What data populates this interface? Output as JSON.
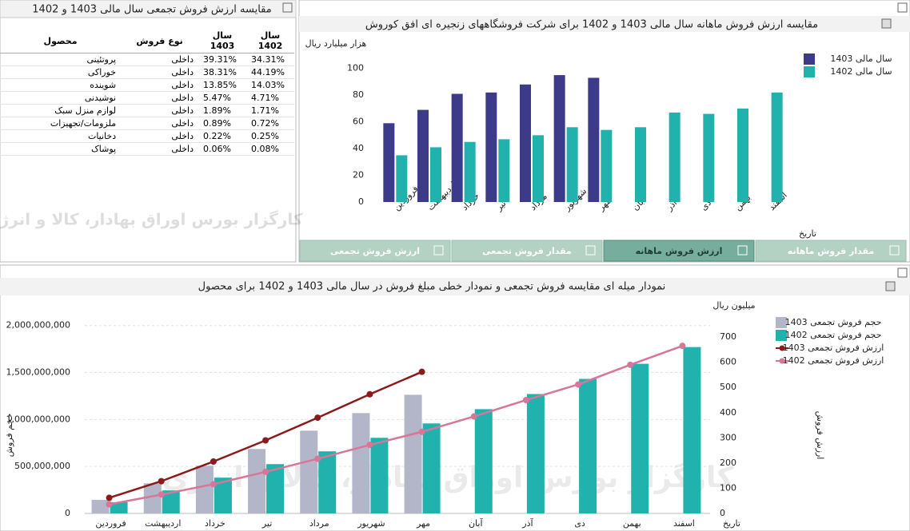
{
  "table_panel": {
    "title": "مقایسه ارزش فروش تجمعی سال مالی 1403 و 1402",
    "columns": [
      "محصول",
      "نوع فروش",
      "سال 1403",
      "سال 1402"
    ],
    "rows": [
      [
        "پروتئینی",
        "داخلی",
        "39.31%",
        "34.31%"
      ],
      [
        "خوراکی",
        "داخلی",
        "38.31%",
        "44.19%"
      ],
      [
        "شوینده",
        "داخلی",
        "13.85%",
        "14.03%"
      ],
      [
        "نوشیدنی",
        "داخلی",
        "5.47%",
        "4.71%"
      ],
      [
        "لوازم منزل سبک",
        "داخلی",
        "1.89%",
        "1.71%"
      ],
      [
        "ملزومات/تجهیزات",
        "داخلی",
        "0.89%",
        "0.72%"
      ],
      [
        "دخانیات",
        "داخلی",
        "0.22%",
        "0.25%"
      ],
      [
        "پوشاک",
        "داخلی",
        "0.06%",
        "0.08%"
      ]
    ]
  },
  "watermark": "کارگزار بورس اوراق بهادار، کالا و انرژی",
  "tabs": [
    "مقدار فروش ماهانه",
    "ارزش فروش ماهانه",
    "مقدار فروش تجمعی",
    "ارزش فروش تجمعی"
  ],
  "active_tab": 1,
  "chart_data": [
    {
      "type": "bar",
      "title": "مقایسه ارزش فروش ماهانه سال مالی 1403 و 1402 برای شرکت فروشگاههای زنجیره ای افق کوروش",
      "y_label": "هزار میلیارد ریال",
      "x_label": "تاریخ",
      "categories": [
        "فروردین",
        "اردیبهشت",
        "خرداد",
        "تیر",
        "مرداد",
        "شهریور",
        "مهر",
        "آبان",
        "آذر",
        "دی",
        "بهمن",
        "اسفند"
      ],
      "series": [
        {
          "name": "سال مالی 1403",
          "color": "#3e3a8a",
          "values": [
            59,
            69,
            81,
            82,
            88,
            95,
            93,
            null,
            null,
            null,
            null,
            null
          ]
        },
        {
          "name": "سال مالی 1402",
          "color": "#22b2ad",
          "values": [
            35,
            41,
            45,
            47,
            50,
            56,
            54,
            56,
            67,
            66,
            70,
            82
          ]
        }
      ],
      "ylim": [
        0,
        110
      ],
      "yticks": [
        0,
        20,
        40,
        60,
        80,
        100
      ],
      "grid": false
    },
    {
      "type": "combo",
      "title": "نمودار میله ای مقایسه فروش تجمعی و نمودار خطی مبلغ فروش در سال مالی 1403 و 1402 برای محصول",
      "y_label": "حجم فروش",
      "y2_label": "ارزش فروش",
      "y2_unit": "میلیون ریال",
      "x_label": "تاریخ",
      "categories": [
        "فروردین",
        "اردیبهشت",
        "خرداد",
        "تیر",
        "مرداد",
        "شهریور",
        "مهر",
        "آبان",
        "آذر",
        "دی",
        "بهمن",
        "اسفند"
      ],
      "series": [
        {
          "name": "حجم فروش تجمعی 1403",
          "type": "bar",
          "color": "#b3b5c8",
          "values": [
            144000000,
            320000000,
            508000000,
            686000000,
            881000000,
            1068000000,
            1263000000,
            null,
            null,
            null,
            null,
            null
          ]
        },
        {
          "name": "حجم فروش تجمعی 1402",
          "type": "bar",
          "color": "#22b2ad",
          "values": [
            120000000,
            245000000,
            381000000,
            525000000,
            661000000,
            805000000,
            958000000,
            1110000000,
            1271000000,
            1432000000,
            1593000000,
            1771000000
          ]
        },
        {
          "name": "ارزش فروش تجمعی 1403",
          "type": "line",
          "axis": "y2",
          "color": "#8b1a1a",
          "values": [
            62,
            128,
            206,
            290,
            380,
            473,
            562,
            null,
            null,
            null,
            null,
            null
          ]
        },
        {
          "name": "ارزش فروش تجمعی 1402",
          "type": "line",
          "axis": "y2",
          "color": "#d8769a",
          "values": [
            36,
            75,
            116,
            165,
            217,
            272,
            324,
            385,
            450,
            512,
            590,
            665
          ]
        }
      ],
      "ylim": [
        0,
        2210000000
      ],
      "yticks": [
        0,
        {
          "value": 500000000,
          "label": "500,000,000"
        },
        {
          "value": 1000000000,
          "label": "1,000,000,000"
        },
        {
          "value": 1500000000,
          "label": "1,500,000,000"
        },
        {
          "value": 2000000000,
          "label": "2,000,000,000"
        }
      ],
      "y2lim": [
        0,
        824
      ],
      "y2ticks": [
        0,
        100,
        200,
        300,
        400,
        500,
        600,
        700
      ],
      "grid": true
    }
  ]
}
